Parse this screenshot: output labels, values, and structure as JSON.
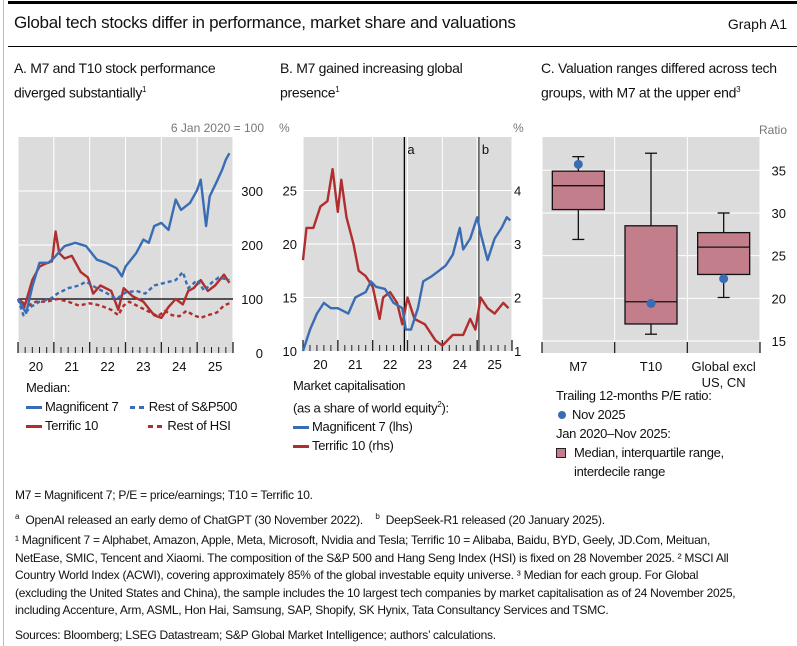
{
  "header": {
    "title": "Global tech stocks differ in performance, market share and valuations",
    "graph_label": "Graph A1"
  },
  "colors": {
    "blue": "#3a6cb4",
    "red": "#b02e2e",
    "box_fill": "#c37e8c",
    "plot_bg": "#dcdcdc",
    "grid": "#ffffff"
  },
  "panels": {
    "a": {
      "title": "A. M7 and T10 stock performance diverged substantially",
      "title_sup": "1"
    },
    "b": {
      "title": "B. M7 gained increasing global presence",
      "title_sup": "1"
    },
    "c": {
      "title": "C. Valuation ranges differed across tech groups, with M7 at the upper end",
      "title_sup": "3"
    }
  },
  "legend_a": {
    "heading": "Median:",
    "items": [
      "Magnificent 7",
      "Rest of S&P500",
      "Terrific 10",
      "Rest of HSI"
    ]
  },
  "legend_b": {
    "heading1": "Market capitalisation",
    "heading2": "(as a share of world equity",
    "heading2_sup": "2",
    "heading2_end": "):",
    "items": [
      "Magnificent 7 (lhs)",
      "Terrific 10 (rhs)"
    ]
  },
  "legend_c": {
    "heading1": "Trailing 12-months P/E ratio:",
    "dot_label": "Nov 2025",
    "heading2": "Jan 2020–Nov 2025:",
    "box_label1": "Median, interquartile range,",
    "box_label2": "interdecile range"
  },
  "chart_data": [
    {
      "type": "line",
      "panel": "A",
      "unit": "6 Jan 2020 = 100",
      "xticks": [
        "20",
        "21",
        "22",
        "23",
        "24",
        "25"
      ],
      "xlim": [
        2020,
        2026
      ],
      "ylim": [
        0,
        400
      ],
      "yticks": [
        0,
        100,
        200,
        300
      ],
      "reference_line": 100,
      "grid": true,
      "series": [
        {
          "name": "Magnificent 7",
          "style": "solid",
          "color": "#3a6cb4",
          "x": [
            2020.0,
            2020.23,
            2020.4,
            2020.6,
            2020.85,
            2021.0,
            2021.3,
            2021.6,
            2021.9,
            2022.2,
            2022.45,
            2022.75,
            2022.9,
            2023.0,
            2023.3,
            2023.5,
            2023.65,
            2023.8,
            2024.0,
            2024.2,
            2024.4,
            2024.55,
            2024.8,
            2025.0,
            2025.1,
            2025.25,
            2025.35,
            2025.55,
            2025.7,
            2025.8,
            2025.9
          ],
          "y": [
            100,
            74,
            123,
            167,
            167,
            176,
            198,
            204,
            198,
            173,
            167,
            157,
            142,
            160,
            185,
            210,
            204,
            235,
            241,
            228,
            284,
            265,
            278,
            302,
            321,
            235,
            290,
            318,
            340,
            358,
            370
          ]
        },
        {
          "name": "Rest of S&P500",
          "style": "dashed",
          "color": "#3a6cb4",
          "x": [
            2020.0,
            2020.15,
            2020.35,
            2020.6,
            2020.9,
            2021.1,
            2021.4,
            2021.7,
            2021.9,
            2022.2,
            2022.5,
            2022.75,
            2023.0,
            2023.3,
            2023.55,
            2023.8,
            2024.1,
            2024.4,
            2024.6,
            2024.75,
            2025.0,
            2025.2,
            2025.4,
            2025.6,
            2025.9
          ],
          "y": [
            100,
            70,
            85,
            95,
            100,
            110,
            120,
            125,
            132,
            120,
            110,
            100,
            112,
            115,
            110,
            125,
            130,
            135,
            150,
            120,
            135,
            115,
            130,
            140,
            135
          ]
        },
        {
          "name": "Terrific 10",
          "style": "solid",
          "color": "#b02e2e",
          "x": [
            2020.0,
            2020.2,
            2020.4,
            2020.6,
            2020.75,
            2020.95,
            2021.05,
            2021.15,
            2021.3,
            2021.5,
            2021.75,
            2021.95,
            2022.1,
            2022.3,
            2022.6,
            2022.8,
            2022.95,
            2023.2,
            2023.5,
            2023.8,
            2024.0,
            2024.2,
            2024.4,
            2024.6,
            2024.75,
            2024.9,
            2025.1,
            2025.3,
            2025.5,
            2025.75,
            2025.9
          ],
          "y": [
            100,
            90,
            135,
            160,
            165,
            170,
            225,
            185,
            175,
            180,
            150,
            140,
            110,
            125,
            115,
            80,
            120,
            105,
            95,
            70,
            65,
            85,
            100,
            90,
            115,
            120,
            135,
            115,
            125,
            145,
            130
          ]
        },
        {
          "name": "Rest of HSI",
          "style": "dashed",
          "color": "#b02e2e",
          "x": [
            2020.0,
            2020.2,
            2020.5,
            2020.8,
            2021.1,
            2021.4,
            2021.7,
            2022.0,
            2022.3,
            2022.6,
            2022.8,
            2022.95,
            2023.1,
            2023.4,
            2023.7,
            2023.9,
            2024.1,
            2024.3,
            2024.5,
            2024.7,
            2024.9,
            2025.1,
            2025.3,
            2025.55,
            2025.75,
            2025.9
          ],
          "y": [
            100,
            85,
            95,
            95,
            100,
            95,
            88,
            92,
            88,
            80,
            70,
            88,
            95,
            85,
            75,
            68,
            78,
            70,
            68,
            78,
            70,
            65,
            70,
            75,
            88,
            92
          ]
        }
      ]
    },
    {
      "type": "line",
      "panel": "B",
      "unit_left": "%",
      "unit_right": "%",
      "xticks": [
        "20",
        "21",
        "22",
        "23",
        "24",
        "25"
      ],
      "xlim": [
        2020,
        2026
      ],
      "ylim_left": [
        10,
        30
      ],
      "yticks_left": [
        10,
        15,
        20,
        25
      ],
      "ylim_right": [
        1,
        5
      ],
      "yticks_right": [
        1,
        2,
        3,
        4
      ],
      "grid": true,
      "events": [
        {
          "label": "a",
          "x": 2022.91
        },
        {
          "label": "b",
          "x": 2025.05
        }
      ],
      "series": [
        {
          "name": "Magnificent 7 (lhs)",
          "axis": "left",
          "color": "#3a6cb4",
          "x": [
            2020.0,
            2020.2,
            2020.4,
            2020.6,
            2020.8,
            2021.0,
            2021.3,
            2021.5,
            2021.8,
            2021.95,
            2022.1,
            2022.35,
            2022.6,
            2022.85,
            2022.95,
            2023.1,
            2023.3,
            2023.45,
            2023.7,
            2023.9,
            2024.1,
            2024.3,
            2024.5,
            2024.6,
            2024.8,
            2025.0,
            2025.1,
            2025.3,
            2025.5,
            2025.7,
            2025.85,
            2025.95
          ],
          "y": [
            10,
            12,
            13.5,
            14.5,
            14,
            14,
            13.5,
            15,
            15.5,
            16.5,
            16,
            15.8,
            14.5,
            14,
            12,
            12,
            14,
            16.5,
            17,
            17.5,
            18,
            19,
            21.5,
            19.5,
            20.5,
            22.5,
            21,
            18.5,
            20.5,
            21.5,
            22.5,
            22.2
          ]
        },
        {
          "name": "Terrific 10 (rhs)",
          "axis": "right",
          "color": "#b02e2e",
          "x": [
            2020.0,
            2020.1,
            2020.3,
            2020.5,
            2020.7,
            2020.85,
            2021.0,
            2021.1,
            2021.25,
            2021.45,
            2021.6,
            2021.8,
            2022.0,
            2022.2,
            2022.3,
            2022.5,
            2022.7,
            2022.85,
            2023.0,
            2023.2,
            2023.5,
            2023.8,
            2024.0,
            2024.3,
            2024.6,
            2024.8,
            2024.95,
            2025.1,
            2025.3,
            2025.5,
            2025.75,
            2025.9
          ],
          "y": [
            2.7,
            3.3,
            3.3,
            3.7,
            3.8,
            4.4,
            3.6,
            4.2,
            3.5,
            3.0,
            2.5,
            2.4,
            2.2,
            1.6,
            2.0,
            2.1,
            1.9,
            1.5,
            2.0,
            1.6,
            1.5,
            1.2,
            1.1,
            1.3,
            1.3,
            1.6,
            1.4,
            2.0,
            1.8,
            1.7,
            1.9,
            1.8
          ]
        }
      ]
    },
    {
      "type": "box",
      "panel": "C",
      "unit": "Ratio",
      "ylim": [
        13.6,
        38.9
      ],
      "yticks": [
        15,
        20,
        25,
        30,
        35
      ],
      "grid": true,
      "categories": [
        "M7",
        "T10",
        "Global excl US, CN"
      ],
      "category_lines": [
        [
          "M7"
        ],
        [
          "T10"
        ],
        [
          "Global excl",
          "US, CN"
        ]
      ],
      "boxes": [
        {
          "p10": 26.9,
          "q1": 30.4,
          "median": 33.2,
          "q3": 34.9,
          "p90": 36.6,
          "nov2025": 35.7
        },
        {
          "p10": 15.8,
          "q1": 17.0,
          "median": 19.6,
          "q3": 28.5,
          "p90": 37.0,
          "nov2025": 19.4
        },
        {
          "p10": 20.1,
          "q1": 22.8,
          "median": 26.0,
          "q3": 27.7,
          "p90": 30.0,
          "nov2025": 22.3
        }
      ]
    }
  ],
  "footnotes": {
    "abbrev": "M7 = Magnificent 7; P/E = price/earnings; T10 = Terrific 10.",
    "a_mark": "a",
    "a_text": "OpenAI released an early demo of ChatGPT (30 November 2022).",
    "b_mark": "b",
    "b_text": "DeepSeek-R1 released (20 January 2025).",
    "notes": [
      "¹  Magnificent 7 = Alphabet, Amazon, Apple, Meta, Microsoft, Nvidia and Tesla; Terrific 10 = Alibaba, Baidu, BYD, Geely, JD.Com, Meituan,",
      "NetEase, SMIC, Tencent and Xiaomi. The composition of the S&P 500 and Hang Seng Index (HSI) is fixed on 28 November 2025.   ²  MSCI All",
      "Country World Index (ACWI), covering approximately 85% of the global investable equity universe.   ³  Median for each group. For Global",
      "(excluding the United States and China), the sample includes the 10 largest tech companies by market capitalisation as of 24 November 2025,",
      "including Accenture, Arm, ASML, Hon Hai, Samsung, SAP, Shopify, SK Hynix, Tata Consultancy Services and TSMC."
    ],
    "sources": "Sources: Bloomberg; LSEG Datastream; S&P Global Market Intelligence; authors’ calculations."
  }
}
